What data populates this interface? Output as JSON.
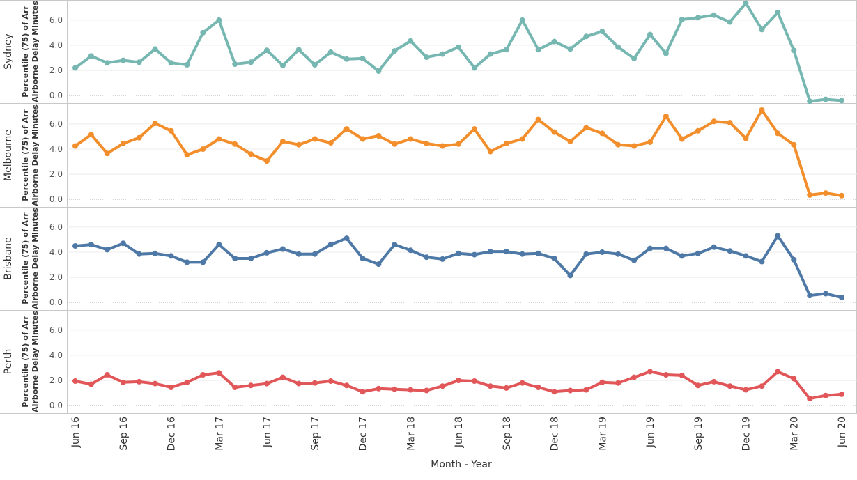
{
  "chart_data": {
    "type": "line",
    "xlabel": "Month - Year",
    "ylabel": [
      "Percentile (75) of Arr",
      "Airborne Delay Minutes"
    ],
    "ylim": [
      -0.6,
      7.6
    ],
    "yticks": [
      "0.0",
      "2.0",
      "4.0",
      "6.0"
    ],
    "grid": true,
    "x_tick_labels": [
      "Jun 16",
      "Sep 16",
      "Dec 16",
      "Mar 17",
      "Jun 17",
      "Sep 17",
      "Dec 17",
      "Mar 18",
      "Jun 18",
      "Sep 18",
      "Dec 18",
      "Mar 19",
      "Jun 19",
      "Sep 19",
      "Dec 19",
      "Mar 20",
      "Jun 20"
    ],
    "x": [
      "Jun 16",
      "Jul 16",
      "Aug 16",
      "Sep 16",
      "Oct 16",
      "Nov 16",
      "Dec 16",
      "Jan 17",
      "Feb 17",
      "Mar 17",
      "Apr 17",
      "May 17",
      "Jun 17",
      "Jul 17",
      "Aug 17",
      "Sep 17",
      "Oct 17",
      "Nov 17",
      "Dec 17",
      "Jan 18",
      "Feb 18",
      "Mar 18",
      "Apr 18",
      "May 18",
      "Jun 18",
      "Jul 18",
      "Aug 18",
      "Sep 18",
      "Oct 18",
      "Nov 18",
      "Dec 18",
      "Jan 19",
      "Feb 19",
      "Mar 19",
      "Apr 19",
      "May 19",
      "Jun 19",
      "Jul 19",
      "Aug 19",
      "Sep 19",
      "Oct 19",
      "Nov 19",
      "Dec 19",
      "Jan 20",
      "Feb 20",
      "Mar 20",
      "Apr 20",
      "May 20",
      "Jun 20"
    ],
    "series": [
      {
        "name": "Sydney",
        "color": "#76b7b2",
        "values": [
          2.2,
          3.15,
          2.6,
          2.8,
          2.65,
          3.7,
          2.6,
          2.45,
          5.0,
          6.0,
          2.5,
          2.65,
          3.6,
          2.4,
          3.65,
          2.45,
          3.45,
          2.9,
          2.95,
          1.95,
          3.55,
          4.35,
          3.05,
          3.3,
          3.85,
          2.2,
          3.3,
          3.65,
          6.0,
          3.65,
          4.3,
          3.7,
          4.7,
          5.1,
          3.85,
          2.95,
          4.85,
          3.35,
          6.05,
          6.2,
          6.4,
          5.85,
          7.35,
          5.25,
          6.6,
          3.6,
          -0.45,
          -0.3,
          -0.4
        ]
      },
      {
        "name": "Melbourne",
        "color": "#f28e2b",
        "values": [
          4.25,
          5.15,
          3.65,
          4.45,
          4.9,
          6.05,
          5.45,
          3.55,
          4.0,
          4.8,
          4.4,
          3.6,
          3.05,
          4.6,
          4.35,
          4.8,
          4.5,
          5.6,
          4.8,
          5.05,
          4.4,
          4.8,
          4.45,
          4.25,
          4.4,
          5.6,
          3.8,
          4.45,
          4.8,
          6.35,
          5.35,
          4.6,
          5.7,
          5.25,
          4.35,
          4.25,
          4.55,
          6.6,
          4.8,
          5.45,
          6.2,
          6.1,
          4.85,
          7.1,
          5.25,
          4.35,
          0.35,
          0.5,
          0.3
        ]
      },
      {
        "name": "Brisbane",
        "color": "#4e79a7",
        "values": [
          4.5,
          4.6,
          4.2,
          4.7,
          3.85,
          3.9,
          3.7,
          3.2,
          3.2,
          4.6,
          3.5,
          3.5,
          3.95,
          4.25,
          3.85,
          3.85,
          4.6,
          5.1,
          3.5,
          3.05,
          4.6,
          4.15,
          3.6,
          3.45,
          3.9,
          3.8,
          4.05,
          4.05,
          3.85,
          3.9,
          3.5,
          2.15,
          3.85,
          4.0,
          3.85,
          3.35,
          4.3,
          4.3,
          3.7,
          3.9,
          4.4,
          4.1,
          3.7,
          3.25,
          5.3,
          3.4,
          0.55,
          0.7,
          0.4
        ]
      },
      {
        "name": "Perth",
        "color": "#e15759",
        "values": [
          1.95,
          1.7,
          2.45,
          1.85,
          1.9,
          1.75,
          1.45,
          1.85,
          2.45,
          2.6,
          1.45,
          1.6,
          1.75,
          2.25,
          1.75,
          1.8,
          1.95,
          1.6,
          1.1,
          1.35,
          1.3,
          1.25,
          1.2,
          1.55,
          2.0,
          1.95,
          1.55,
          1.4,
          1.8,
          1.45,
          1.1,
          1.2,
          1.25,
          1.85,
          1.8,
          2.25,
          2.7,
          2.45,
          2.4,
          1.6,
          1.9,
          1.55,
          1.25,
          1.55,
          2.7,
          2.15,
          0.55,
          0.8,
          0.9
        ]
      }
    ]
  }
}
